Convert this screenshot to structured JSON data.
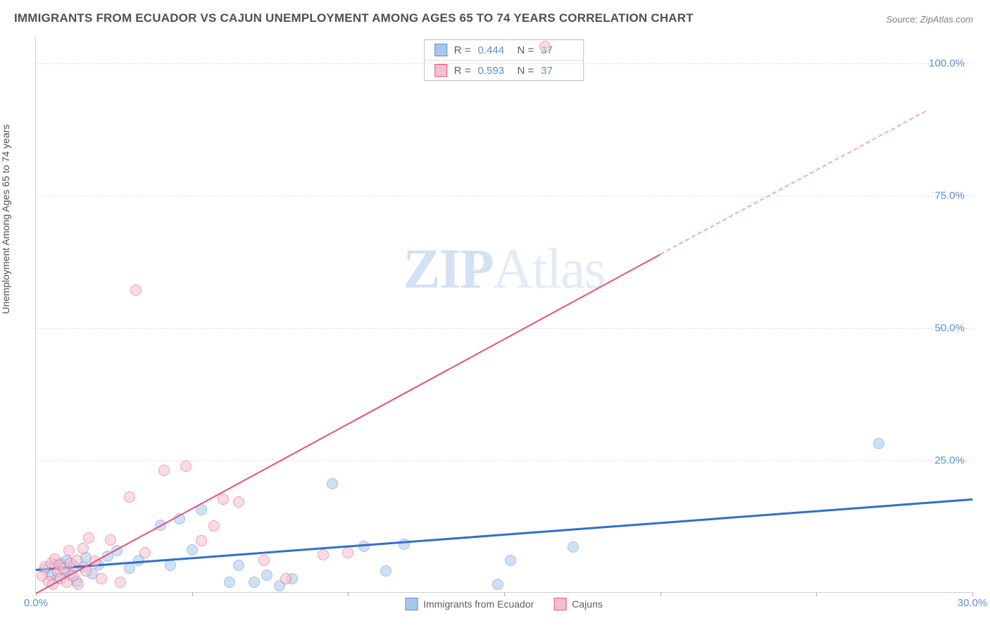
{
  "title": "IMMIGRANTS FROM ECUADOR VS CAJUN UNEMPLOYMENT AMONG AGES 65 TO 74 YEARS CORRELATION CHART",
  "source": "Source: ZipAtlas.com",
  "watermark": {
    "bold": "ZIP",
    "light": "Atlas"
  },
  "y_axis_label": "Unemployment Among Ages 65 to 74 years",
  "chart": {
    "type": "scatter",
    "xlim": [
      0,
      30
    ],
    "ylim": [
      0,
      105
    ],
    "x_ticks": [
      0,
      5,
      10,
      15,
      20,
      25,
      30
    ],
    "x_tick_labels": {
      "0": "0.0%",
      "30": "30.0%"
    },
    "y_ticks": [
      25,
      50,
      75,
      100
    ],
    "y_tick_labels": {
      "25": "25.0%",
      "50": "50.0%",
      "75": "75.0%",
      "100": "100.0%"
    },
    "background_color": "#ffffff",
    "grid_color": "#e0e0e0",
    "axis_label_color": "#5b8fd6",
    "marker_radius": 8,
    "marker_opacity": 0.55,
    "series": [
      {
        "name": "Immigrants from Ecuador",
        "color_fill": "#a9c7ec",
        "color_stroke": "#5b8fd6",
        "R": "0.444",
        "N": "37",
        "trend": {
          "x1": 0,
          "y1": 4.5,
          "x2": 30,
          "y2": 17.8,
          "color": "#2f6fd0",
          "width": 3,
          "dash": false
        },
        "points": [
          [
            0.3,
            4.2
          ],
          [
            0.5,
            3.0
          ],
          [
            0.6,
            5.2
          ],
          [
            0.7,
            2.6
          ],
          [
            0.8,
            5.5
          ],
          [
            0.9,
            4.0
          ],
          [
            1.0,
            6.0
          ],
          [
            1.1,
            3.2
          ],
          [
            1.2,
            5.0
          ],
          [
            1.3,
            2.0
          ],
          [
            1.5,
            4.8
          ],
          [
            1.6,
            6.5
          ],
          [
            1.8,
            3.5
          ],
          [
            2.0,
            5.2
          ],
          [
            2.3,
            6.8
          ],
          [
            2.6,
            7.9
          ],
          [
            3.0,
            4.5
          ],
          [
            3.3,
            6.0
          ],
          [
            4.0,
            12.6
          ],
          [
            4.3,
            5.0
          ],
          [
            4.6,
            13.8
          ],
          [
            5.0,
            8.0
          ],
          [
            5.3,
            15.5
          ],
          [
            6.2,
            1.8
          ],
          [
            6.5,
            5.0
          ],
          [
            7.0,
            1.8
          ],
          [
            7.4,
            3.2
          ],
          [
            7.8,
            1.2
          ],
          [
            8.2,
            2.5
          ],
          [
            9.5,
            20.5
          ],
          [
            10.5,
            8.6
          ],
          [
            11.2,
            4.0
          ],
          [
            11.8,
            9.0
          ],
          [
            14.8,
            1.5
          ],
          [
            15.2,
            6.0
          ],
          [
            17.2,
            8.5
          ],
          [
            27.0,
            28.0
          ]
        ]
      },
      {
        "name": "Cajuns",
        "color_fill": "#f3c0cf",
        "color_stroke": "#e94f7a",
        "R": "0.593",
        "N": "37",
        "trend": {
          "x1": 0,
          "y1": 0.0,
          "x2": 20,
          "y2": 64.0,
          "color": "#e94f7a",
          "width": 2,
          "dash": false
        },
        "trend_ext": {
          "x1": 20,
          "y1": 64.0,
          "x2": 28.5,
          "y2": 91.0,
          "color": "#f3a7bd",
          "width": 2,
          "dash": true
        },
        "points": [
          [
            0.2,
            3.0
          ],
          [
            0.3,
            4.8
          ],
          [
            0.4,
            2.0
          ],
          [
            0.5,
            5.5
          ],
          [
            0.55,
            1.5
          ],
          [
            0.6,
            6.2
          ],
          [
            0.7,
            3.8
          ],
          [
            0.75,
            5.0
          ],
          [
            0.8,
            2.5
          ],
          [
            0.9,
            4.5
          ],
          [
            1.0,
            1.8
          ],
          [
            1.05,
            7.9
          ],
          [
            1.1,
            5.5
          ],
          [
            1.2,
            3.0
          ],
          [
            1.3,
            6.0
          ],
          [
            1.35,
            1.5
          ],
          [
            1.5,
            8.3
          ],
          [
            1.6,
            4.0
          ],
          [
            1.7,
            10.3
          ],
          [
            1.9,
            5.8
          ],
          [
            2.1,
            2.5
          ],
          [
            2.4,
            9.8
          ],
          [
            2.7,
            1.8
          ],
          [
            3.0,
            18.0
          ],
          [
            3.2,
            57.0
          ],
          [
            3.5,
            7.5
          ],
          [
            4.1,
            23.0
          ],
          [
            4.8,
            23.8
          ],
          [
            5.3,
            9.7
          ],
          [
            5.7,
            12.5
          ],
          [
            6.0,
            17.5
          ],
          [
            6.5,
            17.0
          ],
          [
            7.3,
            6.0
          ],
          [
            8.0,
            2.5
          ],
          [
            9.2,
            7.0
          ],
          [
            10.0,
            7.5
          ],
          [
            16.3,
            103.0
          ]
        ]
      }
    ]
  },
  "stats_box_labels": {
    "R": "R =",
    "N": "N ="
  },
  "legend_labels": {
    "ecuador": "Immigrants from Ecuador",
    "cajuns": "Cajuns"
  }
}
